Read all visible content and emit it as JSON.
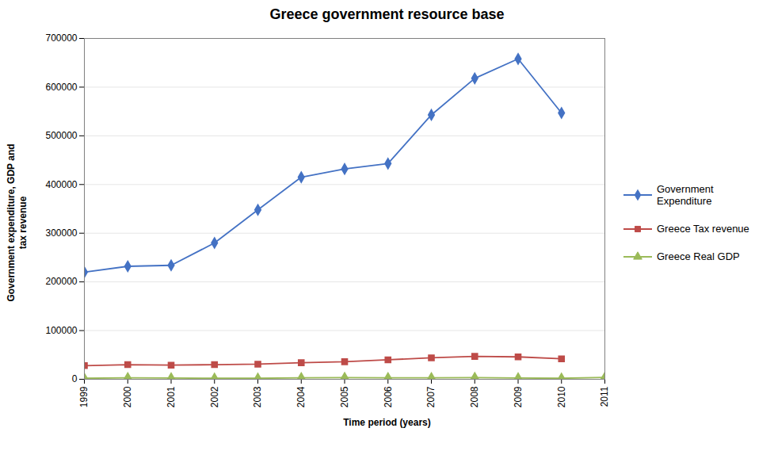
{
  "chart_data": {
    "type": "line",
    "title": "Greece government resource base",
    "xlabel": "Time period (years)",
    "ylabel": "Government expenditure, GDP and\ntax revenue",
    "x": [
      1999,
      2000,
      2001,
      2002,
      2003,
      2004,
      2005,
      2006,
      2007,
      2008,
      2009,
      2010,
      2011
    ],
    "xlim": [
      1999,
      2011
    ],
    "xticks": [
      1999,
      2000,
      2001,
      2002,
      2003,
      2004,
      2005,
      2006,
      2007,
      2008,
      2009,
      2010,
      2011
    ],
    "ylim": [
      0,
      700000
    ],
    "yticks": [
      0,
      100000,
      200000,
      300000,
      400000,
      500000,
      600000,
      700000
    ],
    "grid": true,
    "legend": "right",
    "series": [
      {
        "name": "Government\nExpenditure",
        "color": "#4472C4",
        "marker": "diamond",
        "values": [
          220000,
          232000,
          234000,
          280000,
          348000,
          415000,
          432000,
          443000,
          543000,
          618000,
          658000,
          547000,
          null
        ]
      },
      {
        "name": "Greece Tax revenue",
        "color": "#BE4B48",
        "marker": "square",
        "values": [
          28000,
          30000,
          29000,
          30000,
          31000,
          34000,
          36000,
          40000,
          44000,
          47000,
          46000,
          42000,
          null
        ]
      },
      {
        "name": "Greece Real GDP",
        "color": "#9BBB59",
        "marker": "triangle",
        "values": [
          2000,
          3000,
          2500,
          2000,
          2000,
          3000,
          3500,
          3000,
          3000,
          3500,
          2500,
          2000,
          4000
        ]
      }
    ]
  }
}
